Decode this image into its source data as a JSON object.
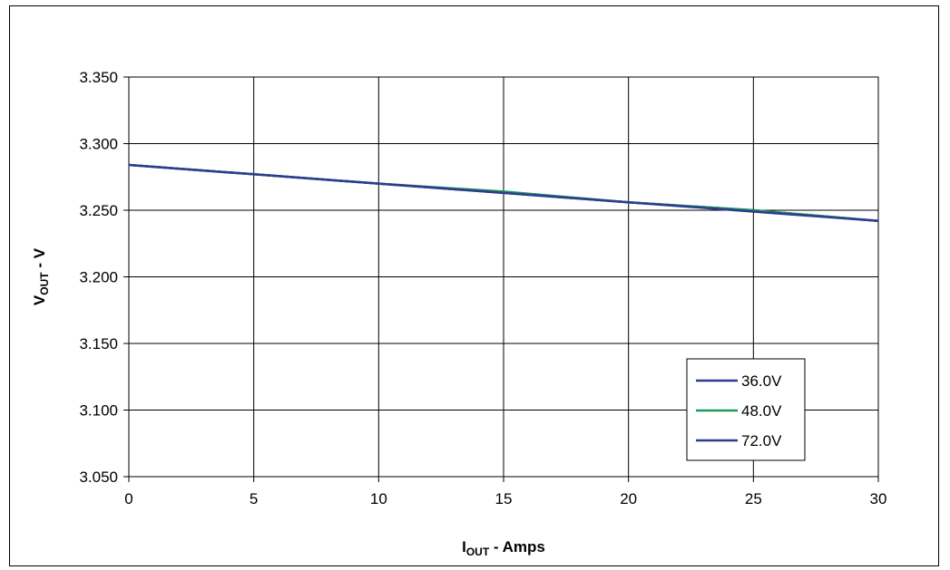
{
  "chart_data": {
    "type": "line",
    "title": "",
    "xlabel": {
      "main": "I",
      "sub": "OUT",
      "rest": " - Amps"
    },
    "ylabel": {
      "main": "V",
      "sub": "OUT",
      "rest": " - V"
    },
    "xlim": [
      0,
      30
    ],
    "ylim": [
      3.05,
      3.35
    ],
    "x_ticks": [
      0,
      5,
      10,
      15,
      20,
      25,
      30
    ],
    "x_tick_labels": [
      "0",
      "5",
      "10",
      "15",
      "20",
      "25",
      "30"
    ],
    "y_ticks": [
      3.05,
      3.1,
      3.15,
      3.2,
      3.25,
      3.3,
      3.35
    ],
    "y_tick_labels": [
      "3.050",
      "3.100",
      "3.150",
      "3.200",
      "3.250",
      "3.300",
      "3.350"
    ],
    "grid": true,
    "legend_position": "bottom-right",
    "series": [
      {
        "name": "36.0V",
        "color": "#2e3b8f",
        "x": [
          0,
          5,
          10,
          15,
          20,
          25,
          30
        ],
        "y": [
          3.284,
          3.277,
          3.27,
          3.263,
          3.256,
          3.25,
          3.242
        ]
      },
      {
        "name": "48.0V",
        "color": "#1a9a5a",
        "x": [
          0,
          5,
          10,
          15,
          20,
          25,
          30
        ],
        "y": [
          3.284,
          3.277,
          3.27,
          3.264,
          3.256,
          3.25,
          3.242
        ]
      },
      {
        "name": "72.0V",
        "color": "#2e3b8f",
        "x": [
          0,
          5,
          10,
          15,
          20,
          25,
          30
        ],
        "y": [
          3.284,
          3.277,
          3.27,
          3.263,
          3.256,
          3.249,
          3.242
        ]
      }
    ]
  }
}
